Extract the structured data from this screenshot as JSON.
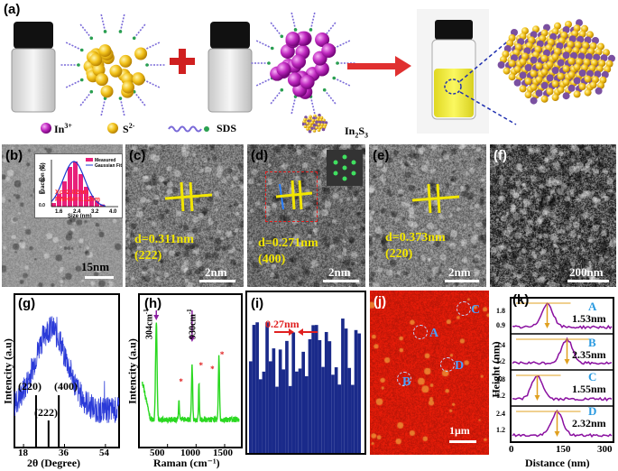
{
  "panel_a": {
    "label": "(a)",
    "legend": {
      "in": "In",
      "in_sup": "3+",
      "s": "S",
      "s_sup": "2-",
      "sds": "SDS",
      "product": "In",
      "product_sub1": "2",
      "product_s": "S",
      "product_sub2": "3"
    },
    "colors": {
      "in_sphere": "#c02ac0",
      "s_sphere": "#f2c21a",
      "arrow": "#e03030",
      "plus": "#d02020",
      "solution": "#f0ee40"
    }
  },
  "panel_b": {
    "label": "(b)",
    "scale": "15nm",
    "inset": {
      "legend_measured": "Measured",
      "legend_fit": "Gaussian Fitting",
      "xc": "Xc=2.02nm",
      "fwhm": "FWHM=1.12nm",
      "ylabel": "Fraction (%)",
      "xlabel": "Size (nm)",
      "yticks": [
        "0.0",
        "0.4",
        "0.8",
        "1.2"
      ],
      "xticks": [
        "1.6",
        "2.4",
        "3.2",
        "4.0"
      ]
    }
  },
  "panel_c": {
    "label": "(c)",
    "d": "d=0.311nm",
    "plane": "(222)",
    "scale": "2nm"
  },
  "panel_d": {
    "label": "(d)",
    "d": "d=0.271nm",
    "plane": "(400)",
    "scale": "2nm"
  },
  "panel_e": {
    "label": "(e)",
    "d": "d=0.373nm",
    "plane": "(220)",
    "scale": "2nm"
  },
  "panel_f": {
    "label": "(f)",
    "scale": "200nm"
  },
  "panel_g": {
    "label": "(g)",
    "ylabel": "Intencity (a.u)",
    "xlabel": "2θ (Degree)",
    "xticks": [
      "18",
      "36",
      "54"
    ],
    "peaks": [
      {
        "label": "(220)",
        "x": 23.5
      },
      {
        "label": "(222)",
        "x": 29.0
      },
      {
        "label": "(400)",
        "x": 33.5
      }
    ]
  },
  "panel_h": {
    "label": "(h)",
    "ylabel": "Intencity (a.u)",
    "xlabel": "Raman (cm⁻¹)",
    "xticks": [
      "500",
      "1000",
      "1500"
    ],
    "peak1": "304cm",
    "peak1_sup": "-1",
    "peak2": "930cm",
    "peak2_sup": "-1"
  },
  "panel_i": {
    "label": "(i)",
    "spacing": "0.27nm"
  },
  "panel_j": {
    "label": "(j)",
    "scale": "1μm",
    "points": [
      "A",
      "B",
      "C",
      "D"
    ]
  },
  "panel_k": {
    "label": "(k)",
    "ylabel": "Height (nm)",
    "xlabel": "Distance (nm)",
    "xticks": [
      "0",
      "150",
      "300"
    ],
    "profiles": [
      {
        "name": "A",
        "value": "1.53nm",
        "yticks": [
          "1.8",
          "0.9"
        ]
      },
      {
        "name": "B",
        "value": "2.35nm",
        "yticks": [
          "2.4",
          "1.2"
        ]
      },
      {
        "name": "C",
        "value": "1.55nm",
        "yticks": [
          "1.8",
          "1.2"
        ]
      },
      {
        "name": "D",
        "value": "2.32nm",
        "yticks": [
          "2.4",
          "1.2"
        ]
      }
    ]
  }
}
